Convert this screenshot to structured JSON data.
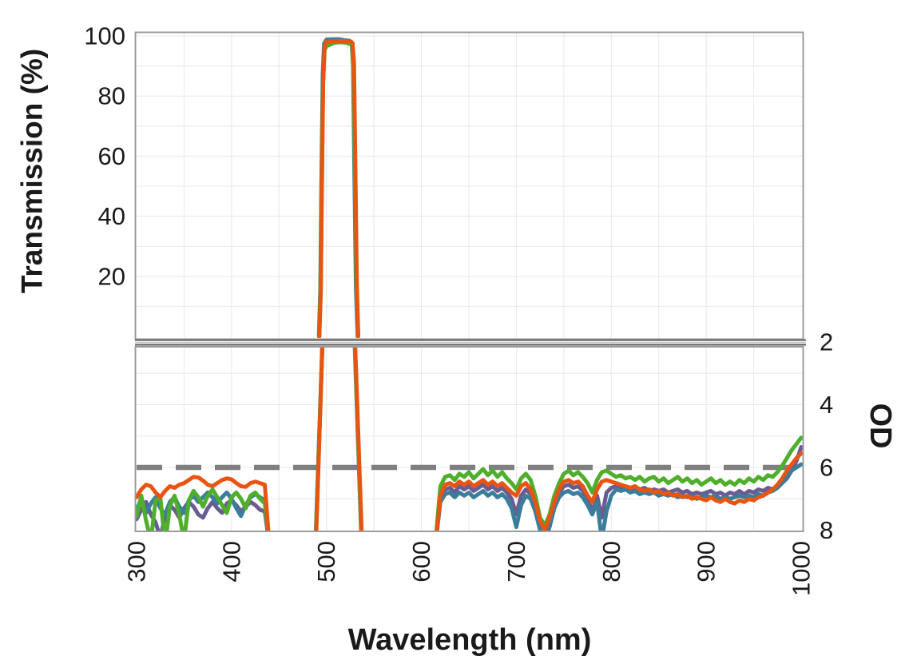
{
  "chart_data": {
    "type": "line",
    "title": "",
    "xlabel": "Wavelength (nm)",
    "ylabel_top": "Transmission (%)",
    "ylabel_right": "OD",
    "x_range": [
      300,
      1000
    ],
    "x_ticks": [
      300,
      400,
      500,
      600,
      700,
      800,
      900,
      1000
    ],
    "x_gridlines_every_nm": 50,
    "top_panel": {
      "y_ticks": [
        20,
        40,
        60,
        80,
        100
      ],
      "ylim": [
        0,
        102
      ],
      "gridline_every_pct": 10
    },
    "bottom_panel": {
      "y_ticks": [
        2,
        4,
        6,
        8
      ],
      "ylim": [
        2,
        8.1
      ],
      "gridline_every_od": 1,
      "dashed_line_od": 6,
      "dashed_line_color": "#7f7f7f"
    },
    "axis_break_between_panels": true,
    "passband_nm": [
      496,
      530
    ],
    "peak_transmission_pct": 98.8,
    "series": [
      {
        "name": "series-purple",
        "color": "#6a5c92",
        "transmission": [
          [
            492.4,
            0
          ],
          [
            493.9,
            15
          ],
          [
            494.9,
            46
          ],
          [
            496.4,
            84
          ],
          [
            498,
            96
          ],
          [
            501,
            97.8
          ],
          [
            510,
            98.0
          ],
          [
            518,
            97.9
          ],
          [
            524,
            97.7
          ],
          [
            527,
            97.2
          ],
          [
            528.7,
            89
          ],
          [
            530.3,
            52
          ],
          [
            531.8,
            17
          ],
          [
            533.3,
            0
          ]
        ],
        "od_segments": [
          {
            "x0": 300,
            "dx": 5,
            "od": [
              7.65,
              7.35,
              7.1,
              7.5,
              7.75,
              8.25,
              7.55,
              7.2,
              7.35,
              7.6,
              7.3,
              7.1,
              7.25,
              7.5,
              7.6,
              7.3,
              7.1,
              7.3,
              7.45,
              7.15,
              7.05,
              7.2,
              7.4,
              7.25,
              7.1,
              7.2,
              7.35,
              7.4,
              8.5
            ]
          },
          {
            "points": [
              [
                488.6,
                8.5
              ],
              [
                496.15,
                1.7
              ]
            ]
          },
          {
            "points": [
              [
                529.6,
                1.7
              ],
              [
                537.3,
                8.5
              ]
            ]
          },
          {
            "x0": 615,
            "dx": 5,
            "od": [
              8.45,
              7.0,
              6.7,
              6.65,
              6.8,
              6.6,
              6.7,
              6.6,
              6.75,
              6.65,
              6.55,
              6.7,
              6.6,
              6.75,
              6.65,
              6.8,
              7.0,
              7.5,
              6.9,
              6.7,
              6.85,
              7.2,
              7.85,
              8.1,
              7.7,
              7.2,
              6.8,
              6.6,
              6.55,
              6.65,
              6.6,
              6.75,
              7.0,
              7.4,
              6.9,
              7.6,
              6.8,
              6.65,
              6.6,
              6.65,
              6.6,
              6.7,
              6.65,
              6.7,
              6.65,
              6.75,
              6.7,
              6.75,
              6.7,
              6.8,
              6.75,
              6.7,
              6.8,
              6.75,
              6.85,
              6.8,
              6.85,
              6.8,
              6.75,
              6.85,
              6.8,
              6.9,
              6.8,
              6.85,
              6.75,
              6.85,
              6.75,
              6.8,
              6.7,
              6.75,
              6.65,
              6.7,
              6.6,
              6.5,
              6.35,
              6.1,
              5.8,
              5.35
            ]
          }
        ]
      },
      {
        "name": "series-teal",
        "color": "#3a7e9b",
        "transmission": [
          [
            492,
            0
          ],
          [
            493.5,
            16
          ],
          [
            494.5,
            48
          ],
          [
            496,
            87
          ],
          [
            497.5,
            97.5
          ],
          [
            500,
            98.8
          ],
          [
            507,
            98.9
          ],
          [
            513,
            98.9
          ],
          [
            519,
            98.6
          ],
          [
            524,
            98.4
          ],
          [
            526.5,
            97.9
          ],
          [
            528,
            90
          ],
          [
            529.5,
            52
          ],
          [
            531,
            16
          ],
          [
            532.8,
            0
          ]
        ],
        "od_segments": [
          {
            "x0": 300,
            "dx": 5,
            "od": [
              7.35,
              7.0,
              7.45,
              7.15,
              6.95,
              7.3,
              7.5,
              7.1,
              6.95,
              7.25,
              7.45,
              7.05,
              6.9,
              7.1,
              6.95,
              6.8,
              6.95,
              7.15,
              6.95,
              6.8,
              7.0,
              7.3,
              7.55,
              7.2,
              6.95,
              6.85,
              6.95,
              7.05,
              8.5
            ]
          },
          {
            "points": [
              [
                488.3,
                8.5
              ],
              [
                496.0,
                1.7
              ]
            ]
          },
          {
            "points": [
              [
                529.3,
                1.7
              ],
              [
                537.0,
                8.5
              ]
            ]
          },
          {
            "x0": 615,
            "dx": 5,
            "od": [
              8.4,
              7.1,
              6.85,
              6.8,
              6.95,
              6.8,
              6.9,
              6.8,
              6.95,
              6.85,
              6.75,
              6.9,
              6.8,
              6.95,
              6.85,
              7.0,
              7.3,
              7.9,
              7.2,
              6.9,
              7.0,
              7.4,
              8.0,
              8.35,
              7.9,
              7.3,
              6.95,
              6.8,
              6.75,
              6.85,
              6.8,
              6.95,
              7.2,
              7.5,
              7.1,
              8.3,
              7.4,
              6.9,
              6.7,
              6.75,
              6.7,
              6.8,
              6.75,
              6.85,
              6.8,
              6.85,
              6.8,
              6.9,
              6.85,
              6.9,
              6.85,
              6.95,
              6.9,
              6.95,
              6.9,
              7.0,
              6.95,
              6.9,
              6.95,
              6.9,
              7.0,
              6.95,
              7.0,
              6.95,
              6.9,
              6.95,
              6.9,
              6.95,
              6.85,
              6.9,
              6.8,
              6.75,
              6.65,
              6.5,
              6.3,
              6.1,
              6.0,
              5.9
            ]
          }
        ]
      },
      {
        "name": "series-green",
        "color": "#4fae2c",
        "transmission": [
          [
            492.2,
            0
          ],
          [
            493.7,
            14
          ],
          [
            494.7,
            44
          ],
          [
            496.2,
            83
          ],
          [
            498,
            95.3
          ],
          [
            500,
            96.6
          ],
          [
            503,
            97.0
          ],
          [
            508,
            97.7
          ],
          [
            514,
            97.9
          ],
          [
            520,
            97.8
          ],
          [
            525,
            97.3
          ],
          [
            527,
            96.9
          ],
          [
            528.6,
            88
          ],
          [
            530.2,
            50
          ],
          [
            531.7,
            16
          ],
          [
            533.2,
            0
          ]
        ],
        "od_segments": [
          {
            "x0": 300,
            "dx": 5,
            "od": [
              7.55,
              6.9,
              7.7,
              8.35,
              7.05,
              6.95,
              8.45,
              7.25,
              6.9,
              7.5,
              8.35,
              7.05,
              6.75,
              6.95,
              7.25,
              6.9,
              6.7,
              6.95,
              7.2,
              7.45,
              6.95,
              6.8,
              7.0,
              7.3,
              6.9,
              6.8,
              7.0,
              7.15,
              8.5
            ]
          },
          {
            "points": [
              [
                488.5,
                8.5
              ],
              [
                496.1,
                1.7
              ]
            ]
          },
          {
            "points": [
              [
                529.5,
                1.7
              ],
              [
                537.2,
                8.5
              ]
            ]
          },
          {
            "x0": 615,
            "dx": 5,
            "od": [
              8.3,
              6.6,
              6.3,
              6.25,
              6.4,
              6.2,
              6.3,
              6.15,
              6.35,
              6.2,
              6.05,
              6.25,
              6.1,
              6.3,
              6.15,
              6.35,
              6.5,
              6.7,
              6.35,
              6.2,
              6.4,
              6.9,
              7.6,
              7.85,
              7.5,
              6.9,
              6.5,
              6.2,
              6.1,
              6.25,
              6.15,
              6.3,
              6.5,
              6.8,
              6.4,
              6.15,
              6.1,
              6.2,
              6.3,
              6.25,
              6.35,
              6.3,
              6.4,
              6.3,
              6.45,
              6.35,
              6.3,
              6.45,
              6.35,
              6.5,
              6.4,
              6.3,
              6.45,
              6.35,
              6.5,
              6.4,
              6.55,
              6.45,
              6.35,
              6.5,
              6.4,
              6.55,
              6.45,
              6.55,
              6.4,
              6.5,
              6.35,
              6.45,
              6.3,
              6.4,
              6.25,
              6.3,
              6.15,
              5.95,
              5.7,
              5.45,
              5.25,
              5.05
            ]
          }
        ]
      },
      {
        "name": "series-orange",
        "color": "#e85412",
        "transmission": [
          [
            492.5,
            0
          ],
          [
            494,
            15
          ],
          [
            495,
            45
          ],
          [
            496.5,
            85
          ],
          [
            498,
            96.5
          ],
          [
            500,
            98.1
          ],
          [
            505,
            98.2
          ],
          [
            512,
            98.3
          ],
          [
            520,
            98.2
          ],
          [
            526,
            98.1
          ],
          [
            527.5,
            97.6
          ],
          [
            529,
            91
          ],
          [
            530.5,
            55
          ],
          [
            532,
            18
          ],
          [
            533.5,
            0
          ]
        ],
        "od_segments": [
          {
            "x0": 300,
            "dx": 5,
            "od": [
              6.95,
              6.7,
              6.55,
              6.6,
              6.8,
              6.95,
              6.75,
              6.6,
              6.65,
              6.55,
              6.5,
              6.4,
              6.3,
              6.32,
              6.42,
              6.55,
              6.6,
              6.5,
              6.4,
              6.35,
              6.38,
              6.5,
              6.6,
              6.62,
              6.5,
              6.45,
              6.5,
              6.55,
              8.5
            ]
          },
          {
            "points": [
              [
                488.8,
                8.5
              ],
              [
                496.2,
                1.7
              ]
            ]
          },
          {
            "points": [
              [
                529.8,
                1.7
              ],
              [
                537.6,
                8.5
              ]
            ]
          },
          {
            "x0": 615,
            "dx": 5,
            "od": [
              8.5,
              6.9,
              6.55,
              6.5,
              6.6,
              6.45,
              6.55,
              6.45,
              6.6,
              6.5,
              6.4,
              6.55,
              6.45,
              6.6,
              6.5,
              6.65,
              6.8,
              6.9,
              6.6,
              6.5,
              6.7,
              7.1,
              7.7,
              8.0,
              7.6,
              7.1,
              6.7,
              6.45,
              6.4,
              6.5,
              6.45,
              6.6,
              6.9,
              7.1,
              6.7,
              6.45,
              6.4,
              6.45,
              6.5,
              6.55,
              6.6,
              6.65,
              6.6,
              6.7,
              6.75,
              6.7,
              6.8,
              6.75,
              6.85,
              6.8,
              6.9,
              6.85,
              6.95,
              6.9,
              7.0,
              6.95,
              7.0,
              7.05,
              6.95,
              7.05,
              7.1,
              7.0,
              7.1,
              7.15,
              7.05,
              7.1,
              7.0,
              7.05,
              6.95,
              6.9,
              6.8,
              6.7,
              6.55,
              6.35,
              6.1,
              5.9,
              5.7,
              5.55
            ]
          }
        ]
      }
    ],
    "style_colors": {
      "gridline": "#e8e8e8",
      "panel_border": "#9c9c9c",
      "axis_break": "#6f6f6f",
      "text": "#1a1a1a"
    }
  }
}
